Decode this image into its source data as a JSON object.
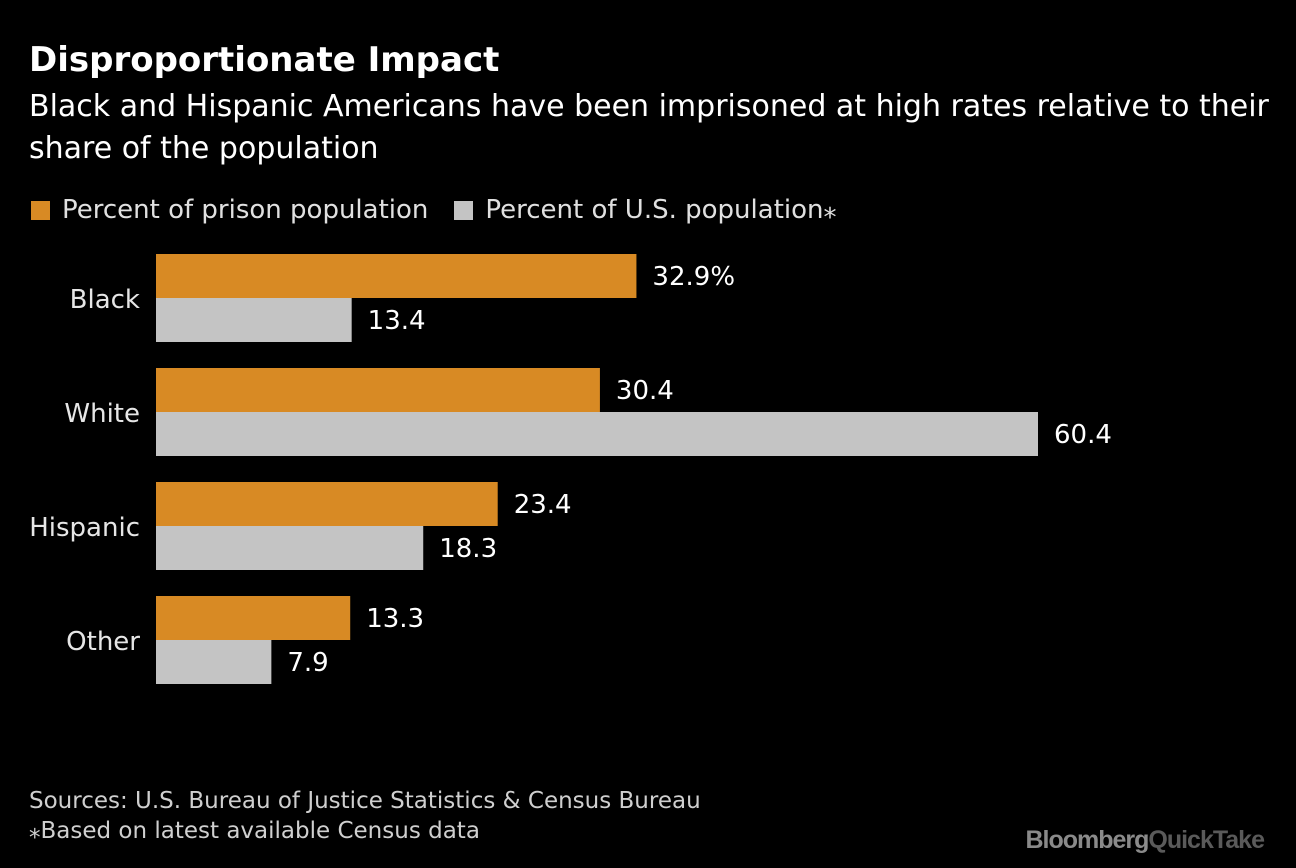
{
  "chart_data": {
    "type": "bar",
    "orientation": "horizontal",
    "title": "Disproportionate Impact",
    "subtitle": "Black and Hispanic Americans have been imprisoned at high rates relative to their share of the population",
    "categories": [
      "Black",
      "White",
      "Hispanic",
      "Other"
    ],
    "series": [
      {
        "name": "Percent of prison population",
        "color": "#d88a24",
        "values": [
          32.9,
          30.4,
          23.4,
          13.3
        ],
        "labels": [
          "32.9%",
          "30.4",
          "23.4",
          "13.3"
        ]
      },
      {
        "name": "Percent of U.S. population⁎",
        "color": "#c4c4c4",
        "values": [
          13.4,
          60.4,
          18.3,
          7.9
        ],
        "labels": [
          "13.4",
          "60.4",
          "18.3",
          "7.9"
        ]
      }
    ],
    "xlim": [
      0,
      60.4
    ],
    "grid": false,
    "legend_position": "top-left"
  },
  "footer": {
    "sources": "Sources: U.S. Bureau of Justice Statistics & Census Bureau",
    "note": "⁎Based on latest available Census data"
  },
  "logo": {
    "bloomberg": "Bloomberg",
    "quicktake": "QuickTake"
  }
}
